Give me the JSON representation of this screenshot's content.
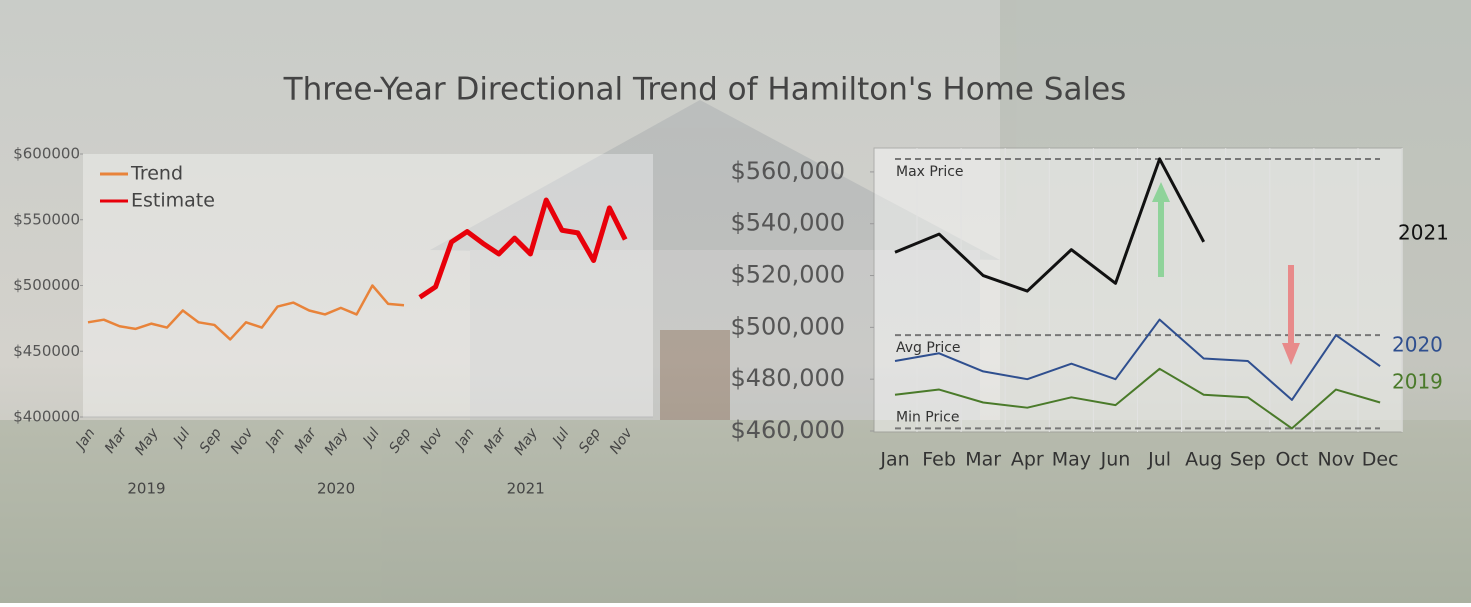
{
  "title": "Three-Year Directional Trend of Hamilton's Home Sales",
  "chart_data": [
    {
      "type": "line",
      "categories": [
        "Jan",
        null,
        "Mar",
        null,
        "May",
        null,
        "Jul",
        null,
        "Sep",
        null,
        "Nov",
        null,
        "Jan",
        null,
        "Mar",
        null,
        "May",
        null,
        "Jul",
        null,
        "Sep",
        null,
        "Nov",
        null,
        "Jan",
        null,
        "Mar",
        null,
        "May",
        null,
        "Jul",
        null,
        "Sep",
        null,
        "Nov",
        null
      ],
      "groups": [
        "2019",
        "2020",
        "2021"
      ],
      "series": [
        {
          "name": "Trend",
          "color": "#e8833a",
          "values": [
            472,
            474,
            469,
            467,
            471,
            468,
            481,
            472,
            470,
            459,
            472,
            468,
            484,
            487,
            481,
            478,
            483,
            478,
            500,
            486,
            485,
            null,
            null,
            null,
            null,
            null,
            null,
            null,
            null,
            null,
            null,
            null,
            null,
            null,
            null,
            null
          ]
        },
        {
          "name": "Estimate",
          "color": "#e8000a",
          "values": [
            null,
            null,
            null,
            null,
            null,
            null,
            null,
            null,
            null,
            null,
            null,
            null,
            null,
            null,
            null,
            null,
            null,
            null,
            null,
            null,
            null,
            491,
            499,
            533,
            541,
            532,
            524,
            536,
            524,
            565,
            542,
            540,
            519,
            559,
            535,
            null
          ]
        }
      ],
      "value_unit": 1000,
      "ylim": [
        400000,
        600000
      ],
      "yticks": [
        {
          "value": 400000,
          "label": "$400000"
        },
        {
          "value": 450000,
          "label": "$450000"
        },
        {
          "value": 500000,
          "label": "$500000"
        },
        {
          "value": 550000,
          "label": "$550000"
        },
        {
          "value": 600000,
          "label": "$600000"
        }
      ],
      "legend": "upper left"
    },
    {
      "type": "line",
      "categories": [
        "Jan",
        "Feb",
        "Mar",
        "Apr",
        "May",
        "Jun",
        "Jul",
        "Aug",
        "Sep",
        "Oct",
        "Nov",
        "Dec"
      ],
      "series": [
        {
          "name": "2021",
          "color": "#111111",
          "values": [
            529000,
            536000,
            520000,
            514000,
            530000,
            517000,
            565000,
            533000,
            null,
            null,
            null,
            null
          ]
        },
        {
          "name": "2020",
          "color": "#2f4f8f",
          "values": [
            487000,
            490000,
            483000,
            480000,
            486000,
            480000,
            503000,
            488000,
            487000,
            472000,
            497000,
            485000
          ]
        },
        {
          "name": "2019",
          "color": "#4a7a2a",
          "values": [
            474000,
            476000,
            471000,
            469000,
            473000,
            470000,
            484000,
            474000,
            473000,
            461000,
            476000,
            471000
          ]
        }
      ],
      "reference_lines": [
        {
          "label": "Max Price",
          "value": 565000
        },
        {
          "label": "Avg Price",
          "value": 497000
        },
        {
          "label": "Min Price",
          "value": 461000
        }
      ],
      "ylim": [
        460000,
        570000
      ],
      "yticks": [
        {
          "value": 460000,
          "label": "$460,000"
        },
        {
          "value": 480000,
          "label": "$480,000"
        },
        {
          "value": 500000,
          "label": "$500,000"
        },
        {
          "value": 520000,
          "label": "$520,000"
        },
        {
          "value": 540000,
          "label": "$540,000"
        },
        {
          "value": 560000,
          "label": "$560,000"
        }
      ]
    }
  ]
}
